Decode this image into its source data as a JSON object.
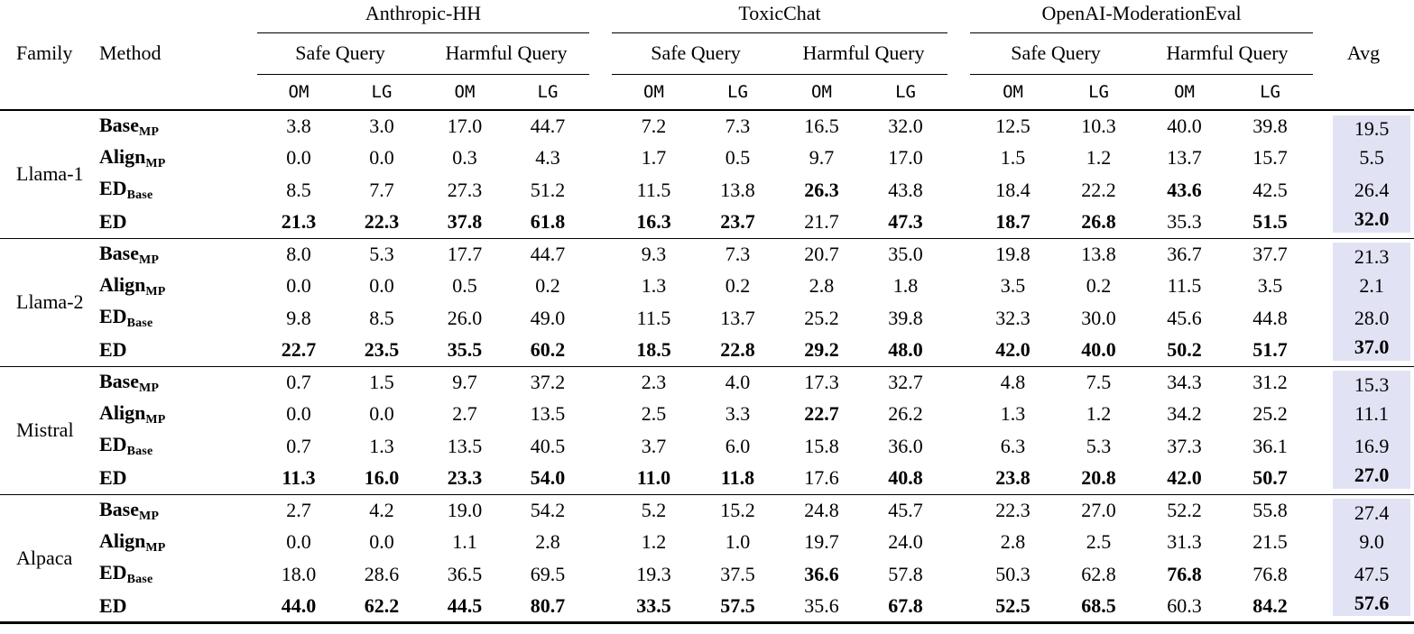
{
  "style": {
    "avg_highlight": "#e2e2f5"
  },
  "header": {
    "family": "Family",
    "method": "Method",
    "avg": "Avg",
    "datasets": [
      {
        "name": "Anthropic-HH"
      },
      {
        "name": "ToxicChat"
      },
      {
        "name": "OpenAI-ModerationEval"
      }
    ],
    "query_types": [
      "Safe Query",
      "Harmful Query"
    ],
    "metrics": [
      "OM",
      "LG"
    ]
  },
  "groups": [
    {
      "family": "Llama-1",
      "rows": [
        {
          "method_base": "Base",
          "method_sub": "MP",
          "values": [
            "3.8",
            "3.0",
            "17.0",
            "44.7",
            "7.2",
            "7.3",
            "16.5",
            "32.0",
            "12.5",
            "10.3",
            "40.0",
            "39.8"
          ],
          "avg": "19.5",
          "bold": [],
          "bold_avg": false
        },
        {
          "method_base": "Align",
          "method_sub": "MP",
          "values": [
            "0.0",
            "0.0",
            "0.3",
            "4.3",
            "1.7",
            "0.5",
            "9.7",
            "17.0",
            "1.5",
            "1.2",
            "13.7",
            "15.7"
          ],
          "avg": "5.5",
          "bold": [],
          "bold_avg": false
        },
        {
          "method_base": "ED",
          "method_sub": "Base",
          "values": [
            "8.5",
            "7.7",
            "27.3",
            "51.2",
            "11.5",
            "13.8",
            "26.3",
            "43.8",
            "18.4",
            "22.2",
            "43.6",
            "42.5"
          ],
          "avg": "26.4",
          "bold": [
            6,
            10
          ],
          "bold_avg": false
        },
        {
          "method_base": "ED",
          "method_sub": "",
          "values": [
            "21.3",
            "22.3",
            "37.8",
            "61.8",
            "16.3",
            "23.7",
            "21.7",
            "47.3",
            "18.7",
            "26.8",
            "35.3",
            "51.5"
          ],
          "avg": "32.0",
          "bold": [
            0,
            1,
            2,
            3,
            4,
            5,
            7,
            8,
            9,
            11
          ],
          "bold_avg": true
        }
      ]
    },
    {
      "family": "Llama-2",
      "rows": [
        {
          "method_base": "Base",
          "method_sub": "MP",
          "values": [
            "8.0",
            "5.3",
            "17.7",
            "44.7",
            "9.3",
            "7.3",
            "20.7",
            "35.0",
            "19.8",
            "13.8",
            "36.7",
            "37.7"
          ],
          "avg": "21.3",
          "bold": [],
          "bold_avg": false
        },
        {
          "method_base": "Align",
          "method_sub": "MP",
          "values": [
            "0.0",
            "0.0",
            "0.5",
            "0.2",
            "1.3",
            "0.2",
            "2.8",
            "1.8",
            "3.5",
            "0.2",
            "11.5",
            "3.5"
          ],
          "avg": "2.1",
          "bold": [],
          "bold_avg": false
        },
        {
          "method_base": "ED",
          "method_sub": "Base",
          "values": [
            "9.8",
            "8.5",
            "26.0",
            "49.0",
            "11.5",
            "13.7",
            "25.2",
            "39.8",
            "32.3",
            "30.0",
            "45.6",
            "44.8"
          ],
          "avg": "28.0",
          "bold": [],
          "bold_avg": false
        },
        {
          "method_base": "ED",
          "method_sub": "",
          "values": [
            "22.7",
            "23.5",
            "35.5",
            "60.2",
            "18.5",
            "22.8",
            "29.2",
            "48.0",
            "42.0",
            "40.0",
            "50.2",
            "51.7"
          ],
          "avg": "37.0",
          "bold": [
            0,
            1,
            2,
            3,
            4,
            5,
            6,
            7,
            8,
            9,
            10,
            11
          ],
          "bold_avg": true
        }
      ]
    },
    {
      "family": "Mistral",
      "rows": [
        {
          "method_base": "Base",
          "method_sub": "MP",
          "values": [
            "0.7",
            "1.5",
            "9.7",
            "37.2",
            "2.3",
            "4.0",
            "17.3",
            "32.7",
            "4.8",
            "7.5",
            "34.3",
            "31.2"
          ],
          "avg": "15.3",
          "bold": [],
          "bold_avg": false
        },
        {
          "method_base": "Align",
          "method_sub": "MP",
          "values": [
            "0.0",
            "0.0",
            "2.7",
            "13.5",
            "2.5",
            "3.3",
            "22.7",
            "26.2",
            "1.3",
            "1.2",
            "34.2",
            "25.2"
          ],
          "avg": "11.1",
          "bold": [
            6
          ],
          "bold_avg": false
        },
        {
          "method_base": "ED",
          "method_sub": "Base",
          "values": [
            "0.7",
            "1.3",
            "13.5",
            "40.5",
            "3.7",
            "6.0",
            "15.8",
            "36.0",
            "6.3",
            "5.3",
            "37.3",
            "36.1"
          ],
          "avg": "16.9",
          "bold": [],
          "bold_avg": false
        },
        {
          "method_base": "ED",
          "method_sub": "",
          "values": [
            "11.3",
            "16.0",
            "23.3",
            "54.0",
            "11.0",
            "11.8",
            "17.6",
            "40.8",
            "23.8",
            "20.8",
            "42.0",
            "50.7"
          ],
          "avg": "27.0",
          "bold": [
            0,
            1,
            2,
            3,
            4,
            5,
            7,
            8,
            9,
            10,
            11
          ],
          "bold_avg": true
        }
      ]
    },
    {
      "family": "Alpaca",
      "rows": [
        {
          "method_base": "Base",
          "method_sub": "MP",
          "values": [
            "2.7",
            "4.2",
            "19.0",
            "54.2",
            "5.2",
            "15.2",
            "24.8",
            "45.7",
            "22.3",
            "27.0",
            "52.2",
            "55.8"
          ],
          "avg": "27.4",
          "bold": [],
          "bold_avg": false
        },
        {
          "method_base": "Align",
          "method_sub": "MP",
          "values": [
            "0.0",
            "0.0",
            "1.1",
            "2.8",
            "1.2",
            "1.0",
            "19.7",
            "24.0",
            "2.8",
            "2.5",
            "31.3",
            "21.5"
          ],
          "avg": "9.0",
          "bold": [],
          "bold_avg": false
        },
        {
          "method_base": "ED",
          "method_sub": "Base",
          "values": [
            "18.0",
            "28.6",
            "36.5",
            "69.5",
            "19.3",
            "37.5",
            "36.6",
            "57.8",
            "50.3",
            "62.8",
            "76.8",
            "76.8"
          ],
          "avg": "47.5",
          "bold": [
            6,
            10
          ],
          "bold_avg": false
        },
        {
          "method_base": "ED",
          "method_sub": "",
          "values": [
            "44.0",
            "62.2",
            "44.5",
            "80.7",
            "33.5",
            "57.5",
            "35.6",
            "67.8",
            "52.5",
            "68.5",
            "60.3",
            "84.2"
          ],
          "avg": "57.6",
          "bold": [
            0,
            1,
            2,
            3,
            4,
            5,
            7,
            8,
            9,
            11
          ],
          "bold_avg": true
        }
      ]
    }
  ]
}
